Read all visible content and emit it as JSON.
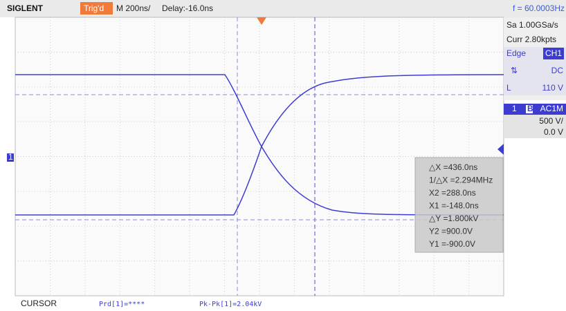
{
  "header": {
    "logo": "SIGLENT",
    "trigger_status": "Trig'd",
    "timebase": "M 200ns/",
    "delay": "Delay:-16.0ns",
    "frequency": "f = 60.0003Hz"
  },
  "side_panel": {
    "sample_rate": "Sa 1.00GSa/s",
    "memory": "Curr 2.80kpts",
    "trigger_type": "Edge",
    "trigger_source": "CH1",
    "slope": "⇅",
    "coupling": "DC",
    "level_label": "L",
    "level": "110 V",
    "channel_number": "1",
    "bandwidth_icon": "B",
    "channel_coupling": "AC1M",
    "scale": "500 V/",
    "offset": "0.0 V"
  },
  "cursor_readout": [
    "△X =436.0ns",
    "1/△X =2.294MHz",
    "X2 =288.0ns",
    "X1 =-148.0ns",
    "△Y =1.800kV",
    "Y2 =900.0V",
    "Y1 =-900.0V"
  ],
  "channel_marker": "1",
  "footer": {
    "mode": "CURSOR",
    "measure_1": "Prd[1]=****",
    "measure_2": "Pk-Pk[1]=2.04kV"
  }
}
